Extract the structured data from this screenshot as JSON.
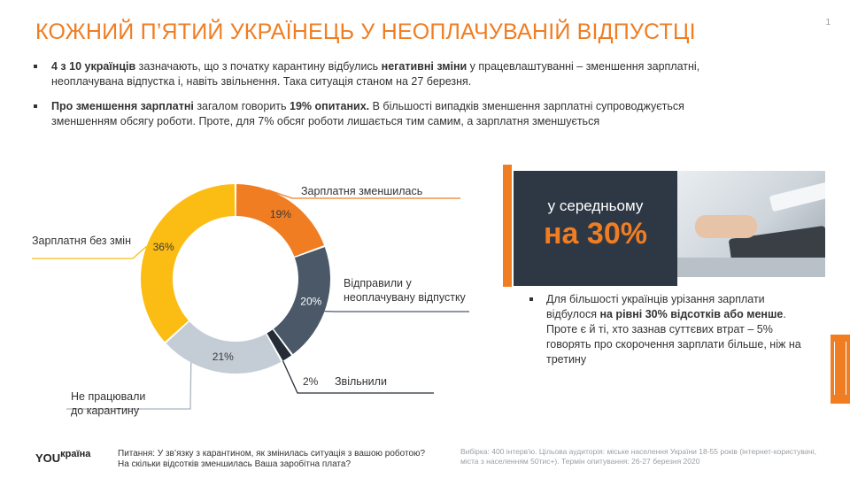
{
  "title": "КОЖНИЙ П’ЯТИЙ УКРАЇНЕЦЬ У НЕОПЛАЧУВАНІЙ ВІДПУСТЦІ",
  "page_number": "1",
  "bullets": [
    {
      "bold1": "4 з 10 українців",
      "text1": " зазначають, що з початку карантину відбулись ",
      "bold2": "негативні зміни",
      "text2": " у працевлаштуванні – зменшення зарплатні, неоплачувана відпустка і, навіть звільнення. Така ситуація станом на 27 березня."
    },
    {
      "bold1": "Про зменшення зарплатні",
      "text1": " загалом говорить ",
      "bold2": "19% опитаних.",
      "text2": " В більшості випадків зменшення зарплатні супроводжується зменшенням обсягу роботи. Проте, для 7% обсяг роботи лишається тим самим, а зарплатня зменшується"
    }
  ],
  "chart_data": {
    "type": "pie",
    "variant": "donut",
    "unit": "%",
    "slices": [
      {
        "label": "Зарплатня зменшилась",
        "value": 19,
        "value_label": "19%",
        "color": "#f07d22"
      },
      {
        "label": "Відправили у неоплачувану відпустку",
        "value": 20,
        "value_label": "20%",
        "color": "#4a5868"
      },
      {
        "label": "Звільнили",
        "value": 2,
        "value_label": "2%",
        "color": "#252c36"
      },
      {
        "label": "Не працювали до карантину",
        "value": 21,
        "value_label": "21%",
        "color": "#c4ccd6"
      },
      {
        "label": "Зарплатня без змін",
        "value": 36,
        "value_label": "36%",
        "color": "#fbbd13"
      }
    ]
  },
  "callout": {
    "subtitle": "у середньому",
    "value": "на 30%"
  },
  "note": {
    "text1": "Для більшості українців урізання зарплати відбулося ",
    "bold": "на рівні 30% відсотків або менше",
    "text2": ". Проте є й ті, хто зазнав суттєвих втрат – 5% говорять про скорочення зарплати більше, ніж на третину"
  },
  "footer": {
    "logo_a": "YOU",
    "logo_b": "країна",
    "question_line1": "Питання: У зв’язку з карантином, як змінилась ситуація з вашою роботою?",
    "question_line2": "На скільки відсотків зменшилась Ваша заробітна плата?",
    "source": "Вибірка: 400 інтерв'ю. Цільова аудиторія: міське населення України 18-55 років (інтернет-користувачі, міста з населенням 50тис+). Термін опитування: 26-27 березня 2020"
  }
}
